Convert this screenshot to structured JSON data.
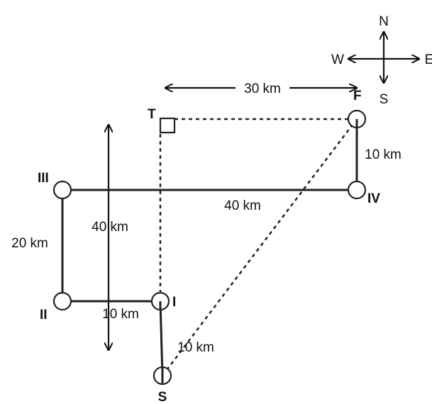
{
  "compass": {
    "n": "N",
    "s": "S",
    "e": "E",
    "w": "W"
  },
  "points": {
    "start": "S",
    "p1": "I",
    "p2": "II",
    "p3": "III",
    "p4": "IV",
    "finish": "F",
    "target": "T"
  },
  "distances": {
    "s_to_i": "10 km",
    "i_to_ii": "10 km",
    "ii_to_iii": "20 km",
    "iii_to_iv": "40 km",
    "iv_to_f": "10 km",
    "t_to_f": "30 km",
    "vertical_span": "40 km"
  }
}
